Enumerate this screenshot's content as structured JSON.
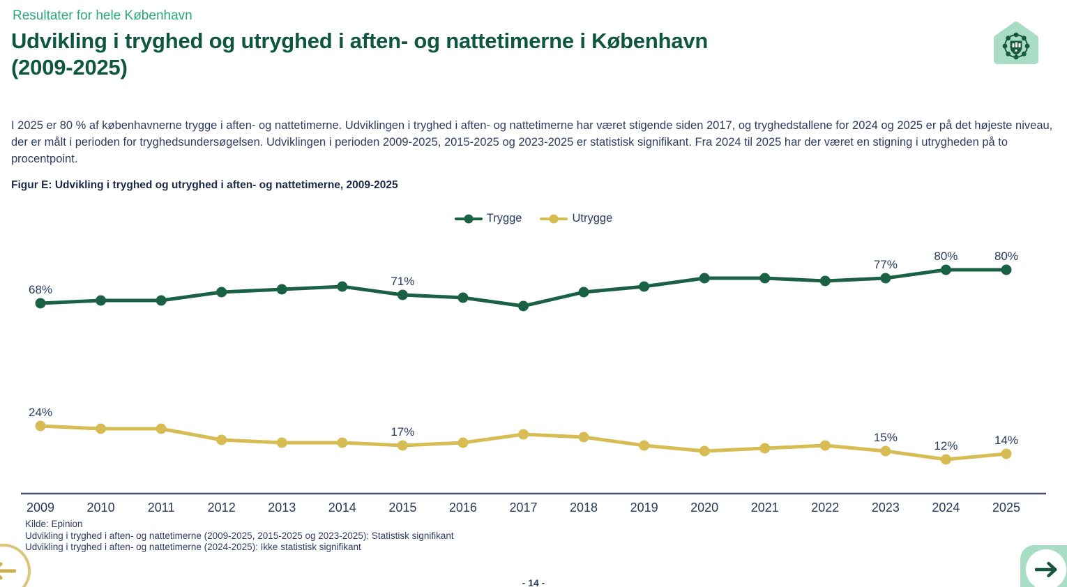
{
  "header": {
    "kicker": "Resultater for hele København",
    "title_line1": "Udvikling i tryghed og utryghed i aften- og nattetimerne i København",
    "title_line2": "(2009-2025)"
  },
  "body": {
    "paragraph": "I 2025 er 80 % af københavnerne trygge i aften- og nattetimerne. Udviklingen i tryghed i aften- og nattetimerne har været stigende siden 2017, og tryghedstallene for 2024 og 2025 er på det højeste niveau, der er målt i perioden for tryghedsundersøgelsen. Udviklingen i perioden 2009-2025, 2015-2025 og 2023-2025 er statistisk signifikant. Fra 2024 til 2025 har der været en stigning i utrygheden på to procentpoint.",
    "figure_caption": "Figur E: Udvikling i tryghed og utryghed i aften- og nattetimerne, 2009-2025"
  },
  "chart_data": {
    "type": "line",
    "title": "Figur E: Udvikling i tryghed og utryghed i aften- og nattetimerne, 2009-2025",
    "categories": [
      "2009",
      "2010",
      "2011",
      "2012",
      "2013",
      "2014",
      "2015",
      "2016",
      "2017",
      "2018",
      "2019",
      "2020",
      "2021",
      "2022",
      "2023",
      "2024",
      "2025"
    ],
    "series": [
      {
        "name": "Trygge",
        "color": "#1a6143",
        "values": [
          68,
          69,
          69,
          72,
          73,
          74,
          71,
          70,
          67,
          72,
          74,
          77,
          77,
          76,
          77,
          80,
          80
        ],
        "point_labels": {
          "2009": "68%",
          "2015": "71%",
          "2023": "77%",
          "2024": "80%",
          "2025": "80%"
        }
      },
      {
        "name": "Utrygge",
        "color": "#d6bc52",
        "values": [
          24,
          23,
          23,
          19,
          18,
          18,
          17,
          18,
          21,
          20,
          17,
          15,
          16,
          17,
          15,
          12,
          14
        ],
        "point_labels": {
          "2009": "24%",
          "2015": "17%",
          "2023": "15%",
          "2024": "12%",
          "2025": "14%"
        }
      }
    ],
    "legend_position": "top-center",
    "grid": false,
    "ylim": [
      0,
      100
    ],
    "xlabel": "",
    "ylabel": ""
  },
  "footer": {
    "source": "Kilde: Epinion",
    "note1": "Udvikling i tryghed i aften- og nattetimerne (2009-2025, 2015-2025 og 2023-2025): Statistisk signifikant",
    "note2": "Udvikling i tryghed i aften- og nattetimerne (2024-2025): Ikke statistisk signifikant",
    "page_number": "- 14 -"
  },
  "colors": {
    "kicker_teal": "#2aa87e",
    "title_green": "#0e5640",
    "body_navy": "#2e3c63",
    "trygge_green": "#1a6143",
    "utrygge_gold": "#d6bc52",
    "mint_accent": "#a9dcc4",
    "gold_accent": "#d9c478"
  }
}
